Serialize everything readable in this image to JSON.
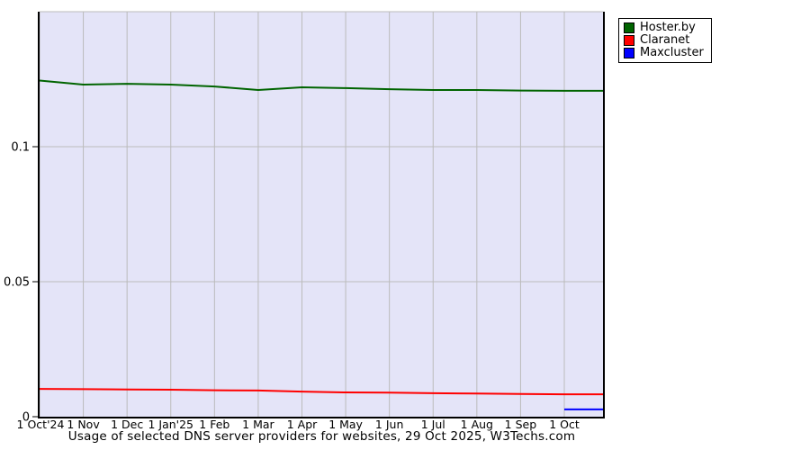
{
  "chart_data": {
    "type": "line",
    "title": "Usage of selected DNS server providers for websites, 29 Oct 2025, W3Techs.com",
    "x_tick_labels": [
      "1 Oct'24",
      "1 Nov",
      "1 Dec",
      "1 Jan'25",
      "1 Feb",
      "1 Mar",
      "1 Apr",
      "1 May",
      "1 Jun",
      "1 Jul",
      "1 Aug",
      "1 Sep",
      "1 Oct"
    ],
    "y_ticks": [
      {
        "value": 0,
        "label": "0"
      },
      {
        "value": 0.05,
        "label": "0.05"
      },
      {
        "value": 0.1,
        "label": "0.1"
      }
    ],
    "ylim": [
      0,
      0.15
    ],
    "x_months_range": [
      0,
      12.886
    ],
    "grid": true,
    "legend_position": "top-right",
    "colors": {
      "plot_bg": "#e4e4f8",
      "grid": "#bbbbbb",
      "axis": "#000000"
    },
    "series": [
      {
        "name": "Hoster.by",
        "color": "#006400",
        "x_months": [
          0,
          1,
          2,
          3,
          4,
          5,
          6,
          7,
          8,
          9,
          10,
          11,
          12,
          12.886
        ],
        "values": [
          0.1245,
          0.123,
          0.1233,
          0.123,
          0.1223,
          0.121,
          0.122,
          0.1217,
          0.1213,
          0.121,
          0.121,
          0.1208,
          0.1207,
          0.1207
        ]
      },
      {
        "name": "Claranet",
        "color": "#ff0000",
        "x_months": [
          0,
          1,
          2,
          3,
          4,
          5,
          6,
          7,
          8,
          9,
          10,
          11,
          12,
          12.886
        ],
        "values": [
          0.0103,
          0.0102,
          0.0101,
          0.01,
          0.0098,
          0.0097,
          0.0093,
          0.009,
          0.0089,
          0.0087,
          0.0086,
          0.0084,
          0.0083,
          0.0083
        ]
      },
      {
        "name": "Maxcluster",
        "color": "#0000ff",
        "x_months": [
          12,
          12.886
        ],
        "values": [
          0.0027,
          0.0027
        ]
      }
    ]
  }
}
